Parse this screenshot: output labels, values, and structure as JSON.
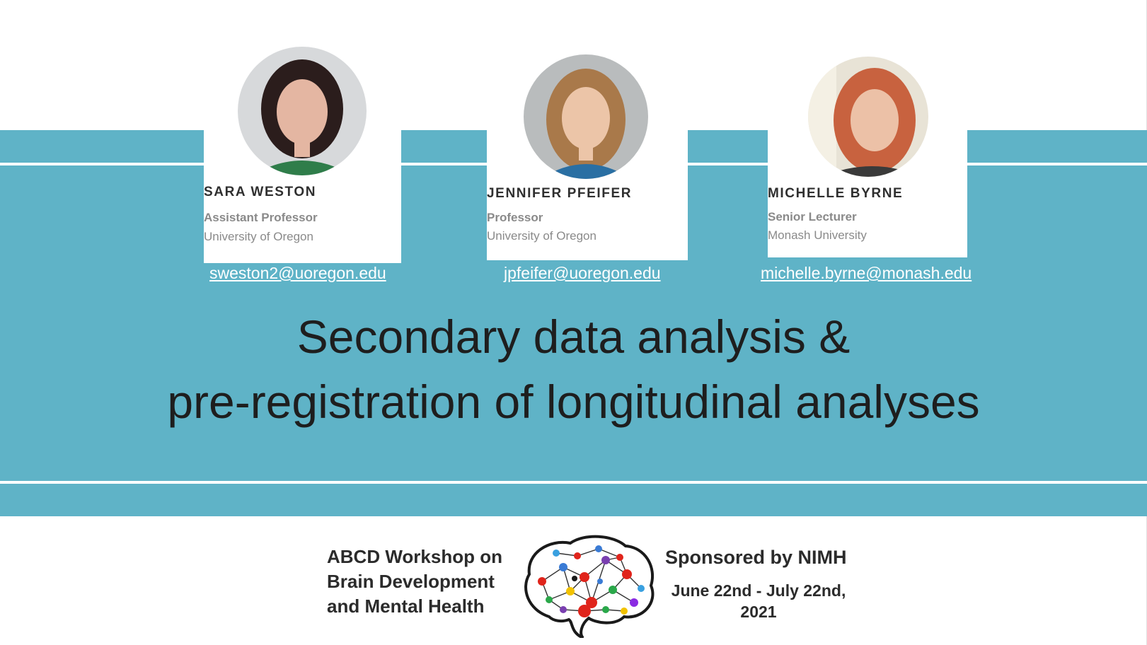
{
  "colors": {
    "band": "#5fb3c7",
    "title_text": "#1e1e1e",
    "email_text": "#ffffff"
  },
  "speakers": [
    {
      "name": "SARA WESTON",
      "role": "Assistant Professor",
      "org": "University of Oregon",
      "email": "sweston2@uoregon.edu"
    },
    {
      "name": "JENNIFER PFEIFER",
      "role": "Professor",
      "org": "University of Oregon",
      "email": "jpfeifer@uoregon.edu"
    },
    {
      "name": "MICHELLE BYRNE",
      "role": "Senior Lecturer",
      "org": "Monash University",
      "email": "michelle.byrne@monash.edu"
    }
  ],
  "title": {
    "line1": "Secondary data analysis &",
    "line2": "pre-registration of longitudinal analyses"
  },
  "footer": {
    "workshop_line1": "ABCD Workshop on",
    "workshop_line2": "Brain Development",
    "workshop_line3": "and Mental Health",
    "sponsor": "Sponsored by NIMH",
    "dates_line1": "June 22nd - July 22nd,",
    "dates_line2": "2021",
    "logo_icon": "brain-network-icon"
  }
}
